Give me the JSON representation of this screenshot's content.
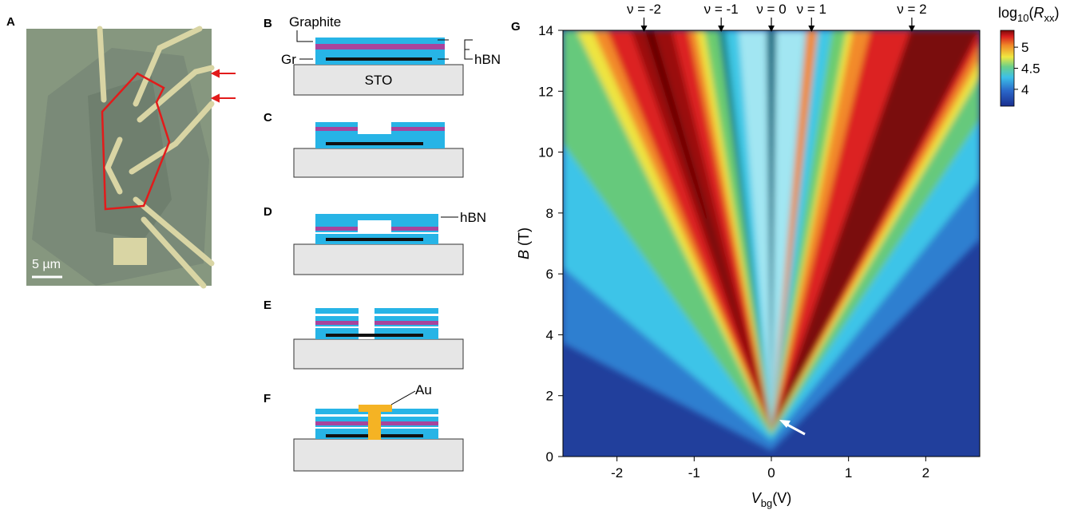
{
  "panel_labels": [
    "A",
    "B",
    "C",
    "D",
    "E",
    "F"
  ],
  "scale_bar": "5 µm",
  "schematic_labels": {
    "graphite": "Graphite",
    "gr": "Gr",
    "hbn_b": "hBN",
    "sto": "STO",
    "hbn_d": "hBN",
    "au": "Au"
  },
  "chart_data": {
    "type": "heatmap",
    "panel_label": "G",
    "x_label": {
      "symbol": "V",
      "subscript": "bg",
      "unit": "(V)"
    },
    "y_label": {
      "symbol": "B",
      "unit": "(T)"
    },
    "xlim": [
      -2.7,
      2.7
    ],
    "xticks": [
      -2,
      -1,
      0,
      1,
      2
    ],
    "ylim": [
      0,
      14
    ],
    "yticks": [
      0,
      2,
      4,
      6,
      8,
      10,
      12,
      14
    ],
    "annotations": [
      {
        "text": "ν = -2",
        "x": -1.65
      },
      {
        "text": "ν = -1",
        "x": -0.65
      },
      {
        "text": "ν = 0",
        "x": 0
      },
      {
        "text": "ν = 1",
        "x": 0.52
      },
      {
        "text": "ν = 2",
        "x": 1.82
      }
    ],
    "colorbar": {
      "label": [
        "log",
        "10",
        "(",
        "R",
        "xx",
        ")"
      ],
      "lim": [
        3.6,
        5.4
      ],
      "ticks": [
        4,
        4.5,
        5
      ]
    }
  }
}
